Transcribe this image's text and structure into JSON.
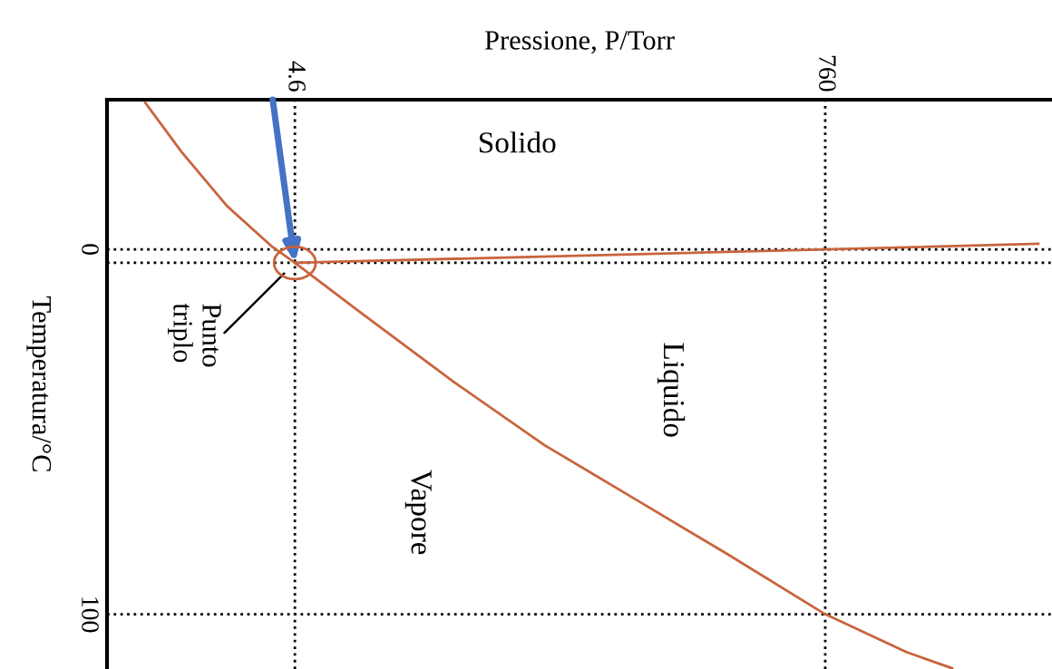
{
  "chart_data": {
    "type": "line",
    "xlabel": "Pressione, P/Torr",
    "ylabel": "Temperatura/°C",
    "xlim": [
      -263,
      1083
    ],
    "ylim": [
      115,
      -41
    ],
    "xticks": [
      4.6,
      760
    ],
    "yticks": [
      0,
      100
    ],
    "series": [
      {
        "color": "#c8643c",
        "x": [
          -208.5,
          -156.8,
          -92.2,
          -27.7,
          4.6,
          101.4,
          230.6,
          359.7,
          488.8,
          618.0,
          760,
          876.2,
          940.8
        ],
        "values": [
          -40.2,
          -26.7,
          -11.9,
          -0.7,
          3.7,
          17.8,
          36.3,
          53.6,
          68.4,
          83.2,
          100,
          110.4,
          114.8
        ]
      },
      {
        "color": "#c8643c",
        "x": [
          4.6,
          760,
          1063.5
        ],
        "values": [
          3.7,
          0,
          -1.5
        ]
      }
    ],
    "ref_lines": [
      {
        "axis": "x",
        "value": 4.6,
        "color": "#000000",
        "line_style": "dotted"
      },
      {
        "axis": "x",
        "value": 760,
        "color": "#000000",
        "line_style": "dotted"
      },
      {
        "axis": "y",
        "value": 0,
        "color": "#000000",
        "line_style": "dotted"
      },
      {
        "axis": "y",
        "value": 3.7,
        "color": "#000000",
        "line_style": "dotted"
      },
      {
        "axis": "y",
        "value": 100,
        "color": "#000000",
        "line_style": "dotted"
      }
    ],
    "annotations": [
      "Solido",
      "Liquido",
      "Vapore",
      "Punto\ntriplo"
    ],
    "grid": false,
    "legend": false,
    "marker": "none",
    "line_style": "solid"
  }
}
